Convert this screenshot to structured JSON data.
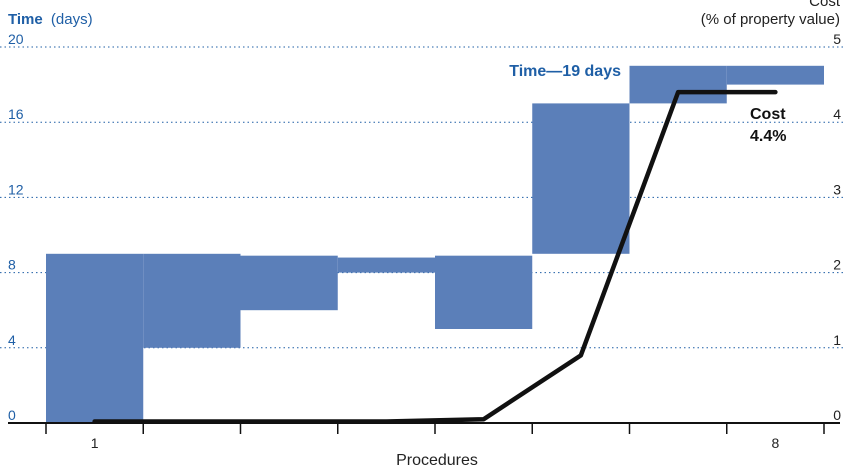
{
  "chart_data": {
    "type": "bar",
    "title_left_bold": "Time",
    "title_left_unit": "(days)",
    "title_right_top": "Cost",
    "title_right_unit": "(% of property value)",
    "xlabel": "Procedures",
    "x_ticks_labeled": [
      {
        "procedure": 1,
        "label": "1"
      },
      {
        "procedure": 8,
        "label": "8"
      }
    ],
    "y_left": {
      "min": 0,
      "max": 20,
      "ticks": [
        "0",
        "4",
        "8",
        "12",
        "16",
        "20"
      ]
    },
    "y_right": {
      "min": 0,
      "max": 5,
      "ticks": [
        "0",
        "1",
        "2",
        "3",
        "4",
        "5"
      ]
    },
    "time_series": {
      "name": "Time",
      "color": "#5b7fb9",
      "steps": [
        {
          "procedure": 1,
          "start": 0,
          "end": 9
        },
        {
          "procedure": 2,
          "start": 4,
          "end": 9
        },
        {
          "procedure": 3,
          "start": 6,
          "end": 8.9
        },
        {
          "procedure": 4,
          "start": 8.0,
          "end": 8.8
        },
        {
          "procedure": 5,
          "start": 5.0,
          "end": 8.9
        },
        {
          "procedure": 6,
          "start": 9,
          "end": 17
        },
        {
          "procedure": 7,
          "start": 17,
          "end": 19
        },
        {
          "procedure": 8,
          "start": 18,
          "end": 19
        }
      ]
    },
    "cost_series": {
      "name": "Cost",
      "color": "#111111",
      "points": [
        {
          "procedure": 1,
          "value": 0.02
        },
        {
          "procedure": 2,
          "value": 0.02
        },
        {
          "procedure": 3,
          "value": 0.02
        },
        {
          "procedure": 4,
          "value": 0.02
        },
        {
          "procedure": 5,
          "value": 0.05
        },
        {
          "procedure": 6,
          "value": 0.9
        },
        {
          "procedure": 7,
          "value": 4.4
        },
        {
          "procedure": 8,
          "value": 4.4
        }
      ]
    },
    "annotations": {
      "time_total": "Time—19 days",
      "cost_label": "Cost",
      "cost_total": "4.4%"
    },
    "grid": "dotted horizontal"
  }
}
